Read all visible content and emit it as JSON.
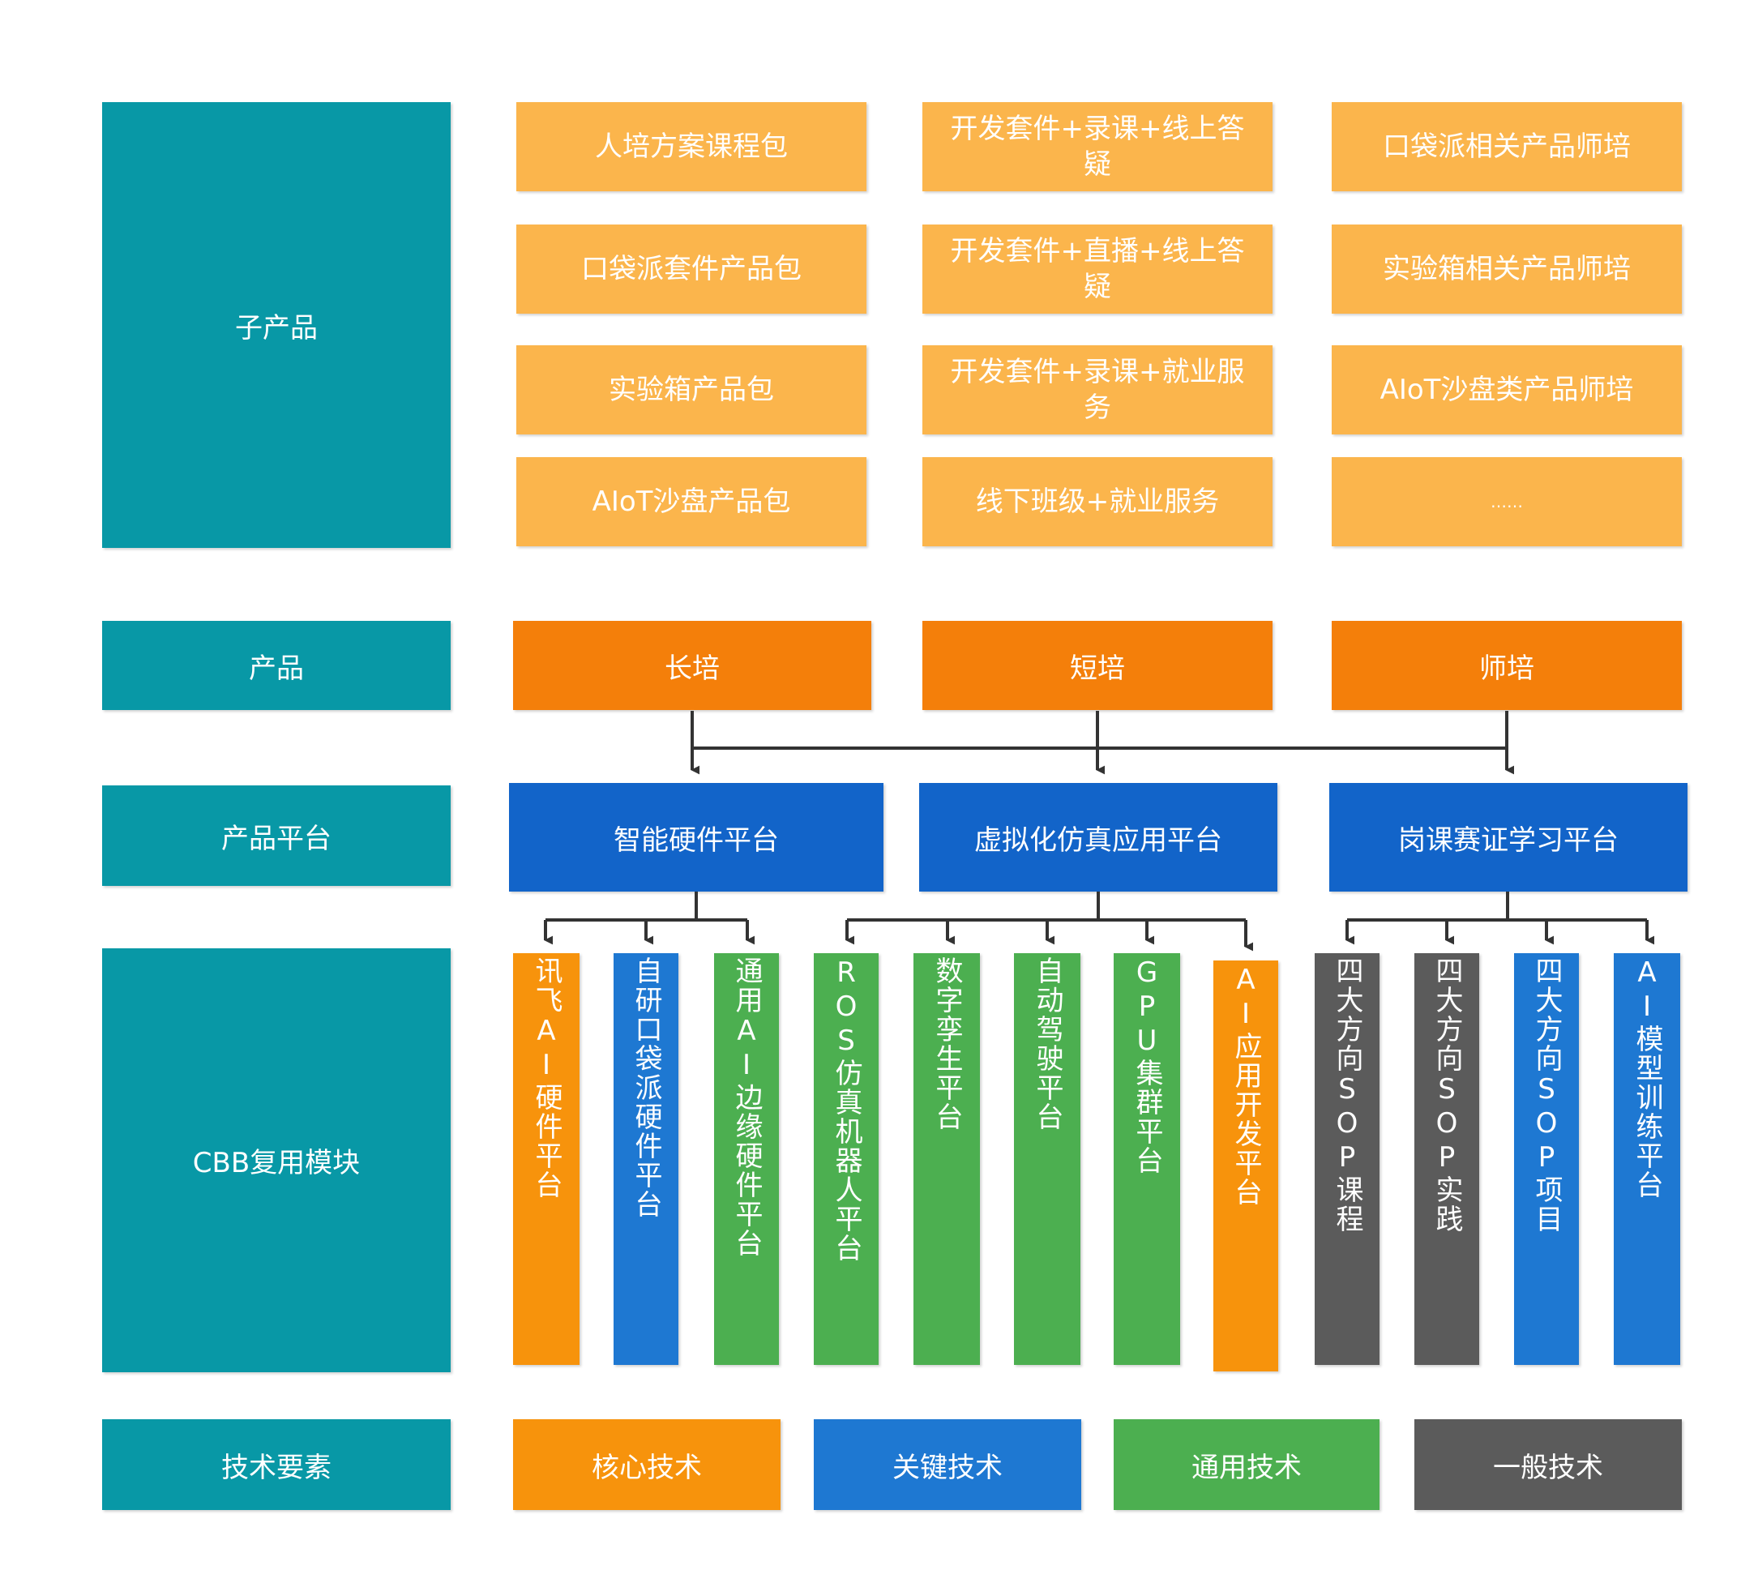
{
  "row_labels": {
    "sub_product": "子产品",
    "product": "产品",
    "platform": "产品平台",
    "cbb": "CBB复用模块",
    "tech": "技术要素"
  },
  "sub_products": {
    "col1": [
      "人培方案课程包",
      "口袋派套件产品包",
      "实验箱产品包",
      "AIoT沙盘产品包"
    ],
    "col2": [
      "开发套件+录课+线上答疑",
      "开发套件+直播+线上答疑",
      "开发套件+录课+就业服务",
      "线下班级+就业服务"
    ],
    "col3": [
      "口袋派相关产品师培",
      "实验箱相关产品师培",
      "AIoT沙盘类产品师培",
      "……"
    ]
  },
  "products": [
    "长培",
    "短培",
    "师培"
  ],
  "platforms": [
    "智能硬件平台",
    "虚拟化仿真应用平台",
    "岗课赛证学习平台"
  ],
  "cbb_modules": [
    {
      "label": "讯飞AI硬件平台",
      "color": "#f7930c"
    },
    {
      "label": "自研口袋派硬件平台",
      "color": "#1e78d2"
    },
    {
      "label": "通用AI边缘硬件平台",
      "color": "#4caf50"
    },
    {
      "label": "ROS仿真机器人平台",
      "color": "#4caf50"
    },
    {
      "label": "数字孪生平台",
      "color": "#4caf50"
    },
    {
      "label": "自动驾驶平台",
      "color": "#4caf50"
    },
    {
      "label": "GPU集群平台",
      "color": "#4caf50"
    },
    {
      "label": "AI应用开发平台",
      "color": "#f7930c"
    },
    {
      "label": "四大方向SOP课程",
      "color": "#5b5b5b"
    },
    {
      "label": "四大方向SOP实践",
      "color": "#5b5b5b"
    },
    {
      "label": "四大方向SOP项目",
      "color": "#1e78d2"
    },
    {
      "label": "AI模型训练平台",
      "color": "#1e78d2"
    }
  ],
  "tech_elements": [
    {
      "label": "核心技术",
      "color": "#f7930c"
    },
    {
      "label": "关键技术",
      "color": "#1e78d2"
    },
    {
      "label": "通用技术",
      "color": "#4caf50"
    },
    {
      "label": "一般技术",
      "color": "#5b5b5b"
    }
  ]
}
